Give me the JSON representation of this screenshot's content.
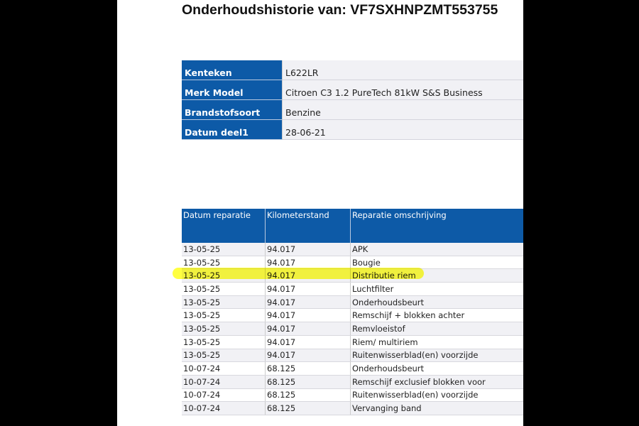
{
  "title": "Onderhoudshistorie van: VF7SXHNPZMT553755",
  "vehicle": [
    {
      "label": "Kenteken",
      "value": "L622LR"
    },
    {
      "label": "Merk Model",
      "value": "Citroen C3 1.2 PureTech 81kW S&S Business"
    },
    {
      "label": "Brandstofsoort",
      "value": "Benzine"
    },
    {
      "label": "Datum deel1",
      "value": "28-06-21"
    }
  ],
  "repairs": {
    "headers": [
      "Datum reparatie",
      "Kilometerstand",
      "Reparatie omschrijving"
    ],
    "highlight_color": "#ffff00",
    "highlighted_row": 2,
    "rows": [
      [
        "13-05-25",
        "94.017",
        "APK"
      ],
      [
        "13-05-25",
        "94.017",
        "Bougie"
      ],
      [
        "13-05-25",
        "94.017",
        "Distributie riem"
      ],
      [
        "13-05-25",
        "94.017",
        "Luchtfilter"
      ],
      [
        "13-05-25",
        "94.017",
        "Onderhoudsbeurt"
      ],
      [
        "13-05-25",
        "94.017",
        "Remschijf + blokken achter"
      ],
      [
        "13-05-25",
        "94.017",
        "Remvloeistof"
      ],
      [
        "13-05-25",
        "94.017",
        "Riem/ multiriem"
      ],
      [
        "13-05-25",
        "94.017",
        "Ruitenwisserblad(en) voorzijde"
      ],
      [
        "10-07-24",
        "68.125",
        "Onderhoudsbeurt"
      ],
      [
        "10-07-24",
        "68.125",
        "Remschijf exclusief blokken voor"
      ],
      [
        "10-07-24",
        "68.125",
        "Ruitenwisserblad(en) voorzijde"
      ],
      [
        "10-07-24",
        "68.125",
        "Vervanging band"
      ]
    ]
  }
}
